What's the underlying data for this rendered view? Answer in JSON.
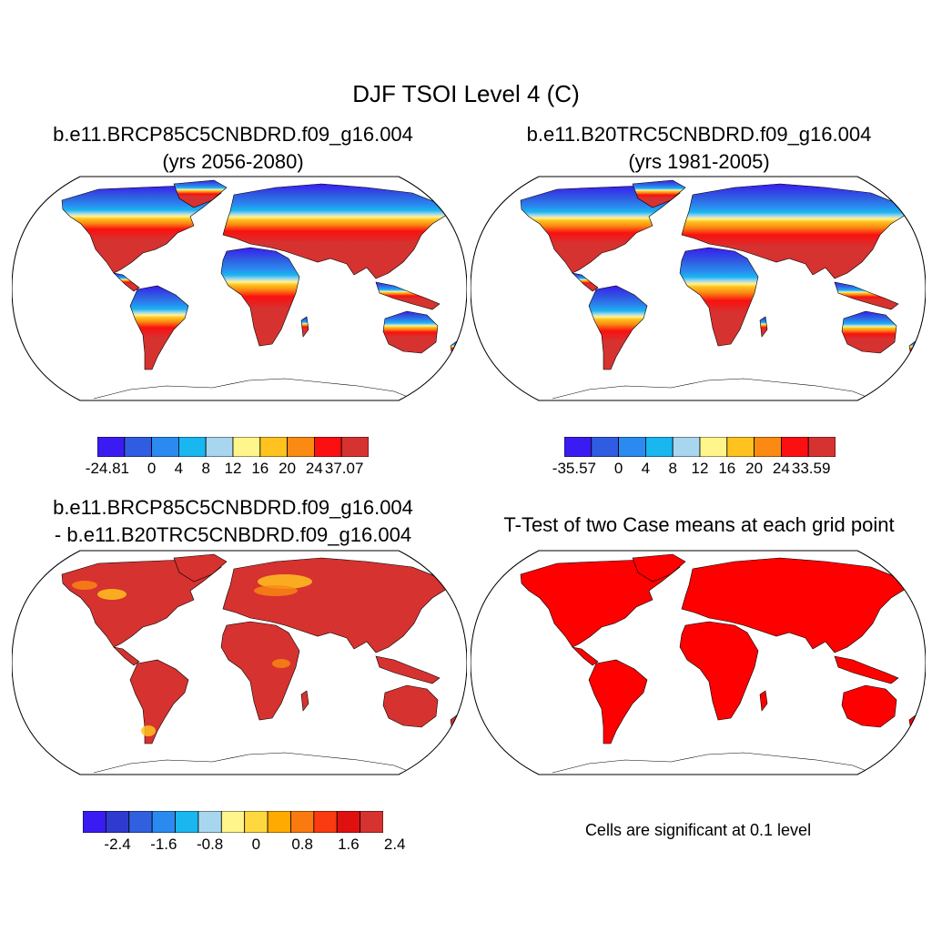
{
  "main_title": "DJF TSOI Level 4 (C)",
  "panels": [
    {
      "id": "case1",
      "title_line1": "b.e11.BRCP85C5CNBDRD.f09_g16.004",
      "title_line2": "(yrs 2056-2080)",
      "colorbar": {
        "colors": [
          "#3a1cf2",
          "#2f5ce0",
          "#2a8af0",
          "#19b6ef",
          "#a8d6ee",
          "#fff58a",
          "#ffc21e",
          "#fb8a12",
          "#fa1010",
          "#d63230"
        ],
        "tick_labels": [
          "-24.81",
          "0",
          "4",
          "8",
          "12",
          "16",
          "20",
          "24",
          "37.07"
        ]
      }
    },
    {
      "id": "case2",
      "title_line1": "b.e11.B20TRC5CNBDRD.f09_g16.004",
      "title_line2": "(yrs 1981-2005)",
      "colorbar": {
        "colors": [
          "#3a1cf2",
          "#2f5ce0",
          "#2a8af0",
          "#19b6ef",
          "#a8d6ee",
          "#fff58a",
          "#ffc21e",
          "#fb8a12",
          "#fa1010",
          "#d63230"
        ],
        "tick_labels": [
          "-35.57",
          "0",
          "4",
          "8",
          "12",
          "16",
          "20",
          "24",
          "33.59"
        ]
      }
    },
    {
      "id": "difference",
      "title_line1": "b.e11.BRCP85C5CNBDRD.f09_g16.004",
      "title_line2": "- b.e11.B20TRC5CNBDRD.f09_g16.004",
      "colorbar": {
        "colors": [
          "#3a1cf2",
          "#2f3ad0",
          "#3060e0",
          "#2a8af0",
          "#19b6ef",
          "#a8d6ee",
          "#fff58a",
          "#ffd840",
          "#ffaa00",
          "#fb7a10",
          "#fa3a10",
          "#e01010",
          "#d63230"
        ],
        "tick_labels": [
          "-2.4",
          "-1.6",
          "-0.8",
          "0",
          "0.8",
          "1.6",
          "2.4"
        ]
      }
    },
    {
      "id": "ttest",
      "title_line1": "T-Test of two Case means at each grid point",
      "note": "Cells are significant at 0.1 level"
    }
  ]
}
